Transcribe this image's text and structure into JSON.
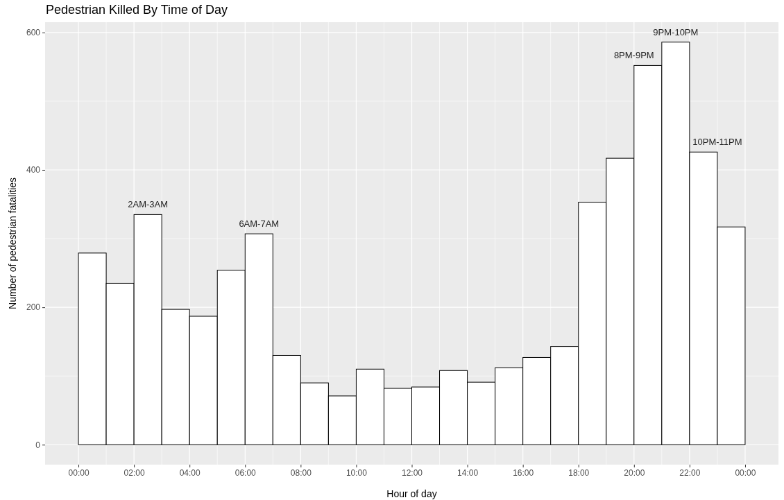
{
  "chart_data": {
    "type": "histogram",
    "title": "Pedestrian Killed By Time of Day",
    "xlabel": "Hour of day",
    "ylabel": "Number of pedestrian fatalities",
    "bins": [
      0,
      1,
      2,
      3,
      4,
      5,
      6,
      7,
      8,
      9,
      10,
      11,
      12,
      13,
      14,
      15,
      16,
      17,
      18,
      19,
      20,
      21,
      22,
      23,
      24
    ],
    "values": [
      279,
      235,
      335,
      197,
      187,
      254,
      307,
      130,
      90,
      71,
      110,
      82,
      84,
      108,
      91,
      112,
      127,
      143,
      353,
      417,
      552,
      586,
      426,
      317
    ],
    "color": "#ffffff",
    "xlim": [
      -1.2,
      25.2
    ],
    "ylim": [
      -29,
      615
    ],
    "xticks": [
      {
        "value": 0,
        "label": "00:00"
      },
      {
        "value": 2,
        "label": "02:00"
      },
      {
        "value": 4,
        "label": "04:00"
      },
      {
        "value": 6,
        "label": "06:00"
      },
      {
        "value": 8,
        "label": "08:00"
      },
      {
        "value": 10,
        "label": "10:00"
      },
      {
        "value": 12,
        "label": "12:00"
      },
      {
        "value": 14,
        "label": "14:00"
      },
      {
        "value": 16,
        "label": "16:00"
      },
      {
        "value": 18,
        "label": "18:00"
      },
      {
        "value": 20,
        "label": "20:00"
      },
      {
        "value": 22,
        "label": "22:00"
      },
      {
        "value": 24,
        "label": "00:00"
      }
    ],
    "yticks": [
      0,
      200,
      400,
      600
    ],
    "grid": true,
    "annotations": [
      {
        "text": "2AM-3AM",
        "x": 2.5,
        "y": 335
      },
      {
        "text": "6AM-7AM",
        "x": 6.5,
        "y": 307
      },
      {
        "text": "8PM-9PM",
        "x": 20,
        "y": 552
      },
      {
        "text": "9PM-10PM",
        "x": 21.5,
        "y": 586
      },
      {
        "text": "10PM-11PM",
        "x": 23,
        "y": 426
      }
    ]
  }
}
